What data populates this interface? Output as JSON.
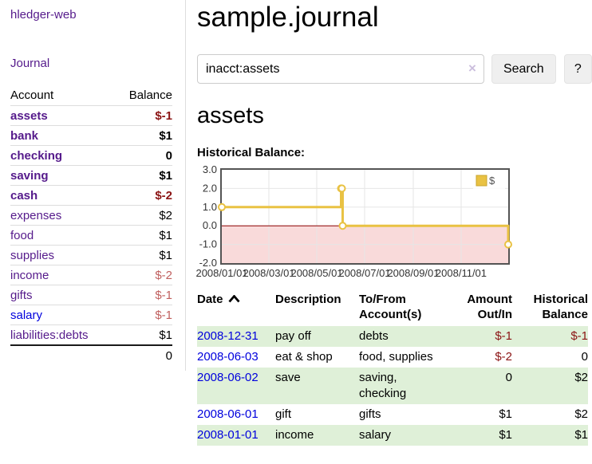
{
  "sidebar": {
    "brand": "hledger-web",
    "journal_link": "Journal",
    "accounts_table": {
      "headers": [
        "Account",
        "Balance"
      ],
      "rows": [
        {
          "label": "assets",
          "indent": 1,
          "bold": true,
          "link_color": "purple",
          "balance": "$-1",
          "balance_class": "neg-strong"
        },
        {
          "label": "bank",
          "indent": 2,
          "bold": true,
          "link_color": "purple",
          "balance": "$1",
          "balance_class": ""
        },
        {
          "label": "checking",
          "indent": 3,
          "bold": true,
          "link_color": "purple",
          "balance": "0",
          "balance_class": ""
        },
        {
          "label": "saving",
          "indent": 3,
          "bold": true,
          "link_color": "purple",
          "balance": "$1",
          "balance_class": ""
        },
        {
          "label": "cash",
          "indent": 2,
          "bold": true,
          "link_color": "purple",
          "balance": "$-2",
          "balance_class": "neg-strong"
        },
        {
          "label": "expenses",
          "indent": 1,
          "bold": false,
          "link_color": "purple",
          "balance": "$2",
          "balance_class": ""
        },
        {
          "label": "food",
          "indent": 2,
          "bold": false,
          "link_color": "purple",
          "balance": "$1",
          "balance_class": ""
        },
        {
          "label": "supplies",
          "indent": 2,
          "bold": false,
          "link_color": "purple",
          "balance": "$1",
          "balance_class": ""
        },
        {
          "label": "income",
          "indent": 1,
          "bold": false,
          "link_color": "purple",
          "balance": "$-2",
          "balance_class": "neg-soft"
        },
        {
          "label": "gifts",
          "indent": 2,
          "bold": false,
          "link_color": "purple",
          "balance": "$-1",
          "balance_class": "neg-soft"
        },
        {
          "label": "salary",
          "indent": 2,
          "bold": false,
          "link_color": "blue",
          "balance": "$-1",
          "balance_class": "neg-soft"
        },
        {
          "label": "liabilities:debts",
          "indent": 1,
          "bold": false,
          "link_color": "purple",
          "balance": "$1",
          "balance_class": ""
        }
      ],
      "total": "0"
    }
  },
  "main": {
    "title": "sample.journal",
    "search": {
      "value": "inacct:assets",
      "clear_glyph": "×",
      "button_label": "Search",
      "help_label": "?"
    },
    "account_heading": "assets",
    "chart_label": "Historical Balance:",
    "register": {
      "headers": {
        "date": "Date",
        "description": "Description",
        "accounts": "To/From Account(s)",
        "amount": "Amount Out/In",
        "balance": "Historical Balance"
      },
      "sort_icon": "chevron-up",
      "rows": [
        {
          "date": "2008-12-31",
          "description": "pay off",
          "accounts": "debts",
          "amount": "$-1",
          "balance": "$-1"
        },
        {
          "date": "2008-06-03",
          "description": "eat & shop",
          "accounts": "food, supplies",
          "amount": "$-2",
          "balance": "0"
        },
        {
          "date": "2008-06-02",
          "description": "save",
          "accounts": "saving, checking",
          "amount": "0",
          "balance": "$2"
        },
        {
          "date": "2008-06-01",
          "description": "gift",
          "accounts": "gifts",
          "amount": "$1",
          "balance": "$2"
        },
        {
          "date": "2008-01-01",
          "description": "income",
          "accounts": "salary",
          "amount": "$1",
          "balance": "$1"
        }
      ]
    }
  },
  "colors": {
    "link_purple": "#551a8b",
    "link_blue": "#0000dd",
    "negative_strong": "#8b1414",
    "negative_soft": "#c0605f",
    "row_stripe_green": "#dff0d8",
    "series_gold": "#e9c243"
  },
  "chart_data": {
    "type": "line",
    "step": true,
    "title": "Historical Balance",
    "series": [
      {
        "name": "$",
        "color": "#e9c243",
        "points": [
          [
            "2008-01-01",
            1
          ],
          [
            "2008-06-01",
            2
          ],
          [
            "2008-06-02",
            2
          ],
          [
            "2008-06-03",
            0
          ],
          [
            "2008-12-31",
            -1
          ]
        ]
      }
    ],
    "x_ticks": [
      "2008/01/01",
      "2008/03/01",
      "2008/05/01",
      "2008/07/01",
      "2008/09/01",
      "2008/11/01"
    ],
    "y_ticks": [
      3.0,
      2.0,
      1.0,
      0.0,
      -1.0,
      -2.0
    ],
    "xlim": [
      "2008-01-01",
      "2008-12-31"
    ],
    "ylim": [
      -2.0,
      3.0
    ],
    "grid": true,
    "legend_position": "top-right",
    "negative_region_color": "#f9dada",
    "zero_line_color": "#8b0000",
    "border_color": "#545454"
  }
}
